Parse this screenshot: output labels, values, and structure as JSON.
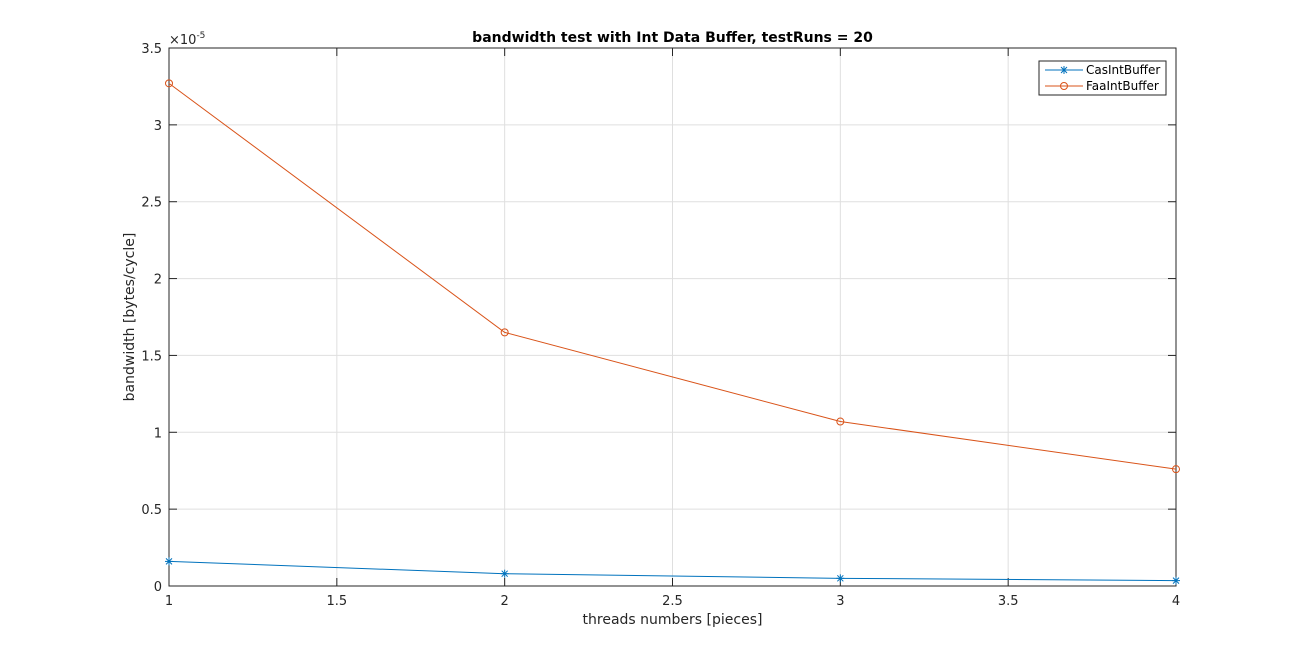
{
  "chart_data": {
    "type": "line",
    "title": "bandwidth test with Int Data Buffer, testRuns = 20",
    "xlabel": "threads numbers [pieces]",
    "ylabel": "bandwidth [bytes/cycle]",
    "y_exponent_label": "×10",
    "y_exponent_power": "-5",
    "xlim": [
      1,
      4
    ],
    "ylim": [
      0,
      3.5
    ],
    "x_ticks": [
      "1",
      "1.5",
      "2",
      "2.5",
      "3",
      "3.5",
      "4"
    ],
    "y_ticks": [
      "0",
      "0.5",
      "1",
      "1.5",
      "2",
      "2.5",
      "3",
      "3.5"
    ],
    "grid": true,
    "legend_position": "top-right",
    "x": [
      1,
      2,
      3,
      4
    ],
    "series": [
      {
        "name": "CasIntBuffer",
        "values": [
          0.16,
          0.08,
          0.05,
          0.035
        ],
        "color": "#0072bd",
        "marker": "asterisk"
      },
      {
        "name": "FaaIntBuffer",
        "values": [
          3.27,
          1.65,
          1.07,
          0.76
        ],
        "color": "#d95319",
        "marker": "circle"
      }
    ]
  }
}
